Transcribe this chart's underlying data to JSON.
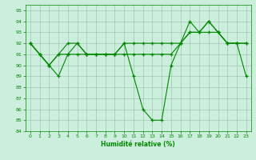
{
  "xlabel": "Humidité relative (%)",
  "xlim": [
    -0.5,
    23.5
  ],
  "ylim": [
    84,
    95.5
  ],
  "yticks": [
    84,
    85,
    86,
    87,
    88,
    89,
    90,
    91,
    92,
    93,
    94,
    95
  ],
  "xticks": [
    0,
    1,
    2,
    3,
    4,
    5,
    6,
    7,
    8,
    9,
    10,
    11,
    12,
    13,
    14,
    15,
    16,
    17,
    18,
    19,
    20,
    21,
    22,
    23
  ],
  "bg_color": "#cceedd",
  "grid_color": "#99bbaa",
  "line_color": "#008800",
  "line1": [
    92,
    91,
    90,
    89,
    91,
    92,
    91,
    91,
    91,
    91,
    92,
    89,
    86,
    85,
    85,
    90,
    92,
    94,
    93,
    94,
    93,
    92,
    92,
    89
  ],
  "line2": [
    92,
    91,
    90,
    91,
    91,
    91,
    91,
    91,
    91,
    91,
    91,
    91,
    91,
    91,
    91,
    91,
    92,
    93,
    93,
    93,
    93,
    92,
    92,
    92
  ],
  "line3": [
    92,
    91,
    90,
    91,
    92,
    92,
    91,
    91,
    91,
    91,
    92,
    92,
    92,
    92,
    92,
    92,
    92,
    93,
    93,
    94,
    93,
    92,
    92,
    92
  ]
}
